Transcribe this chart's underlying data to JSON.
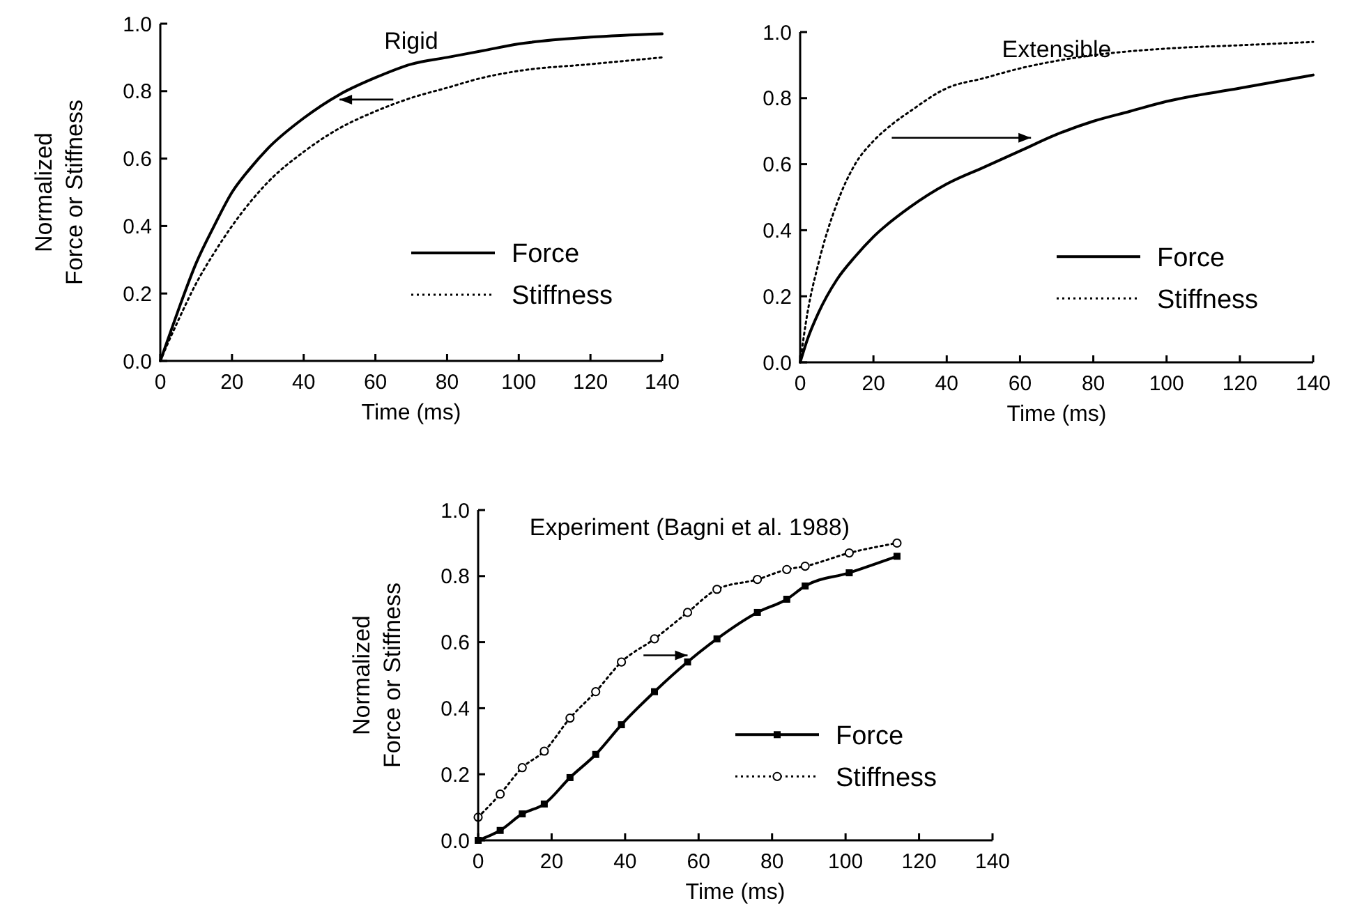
{
  "chart_data": [
    {
      "type": "line",
      "title": "Rigid",
      "xlabel": "Time (ms)",
      "ylabel": "Normalized\nForce or Stiffness",
      "xlim": [
        0,
        140
      ],
      "ylim": [
        0,
        1
      ],
      "xticks": [
        0,
        20,
        40,
        60,
        80,
        100,
        120,
        140
      ],
      "yticks": [
        {
          "value": 0,
          "label": "0.0"
        },
        {
          "value": 0.2,
          "label": "0.2"
        },
        {
          "value": 0.4,
          "label": "0.4"
        },
        {
          "value": 0.6,
          "label": "0.6"
        },
        {
          "value": 0.8,
          "label": "0.8"
        },
        {
          "value": 1,
          "label": "1.0"
        }
      ],
      "legend": "bottom right",
      "series": [
        {
          "name": "Force",
          "color": "#000000",
          "line_style": "solid",
          "x": [
            0,
            2,
            5,
            10,
            15,
            20,
            25,
            30,
            40,
            50,
            60,
            70,
            80,
            90,
            100,
            120,
            140
          ],
          "values": [
            0,
            0.06,
            0.15,
            0.29,
            0.4,
            0.5,
            0.57,
            0.63,
            0.72,
            0.79,
            0.84,
            0.88,
            0.9,
            0.92,
            0.94,
            0.96,
            0.97
          ]
        },
        {
          "name": "Stiffness",
          "color": "#000000",
          "line_style": "dotted",
          "x": [
            0,
            2,
            5,
            10,
            15,
            20,
            25,
            30,
            40,
            50,
            60,
            70,
            80,
            90,
            100,
            120,
            140
          ],
          "values": [
            0,
            0.05,
            0.12,
            0.23,
            0.32,
            0.4,
            0.47,
            0.53,
            0.62,
            0.69,
            0.74,
            0.78,
            0.81,
            0.84,
            0.86,
            0.88,
            0.9
          ]
        }
      ]
    },
    {
      "type": "line",
      "title": "Extensible",
      "xlabel": "Time (ms)",
      "xlim": [
        0,
        140
      ],
      "ylim": [
        0,
        1
      ],
      "xticks": [
        0,
        20,
        40,
        60,
        80,
        100,
        120,
        140
      ],
      "yticks": [
        {
          "value": 0,
          "label": "0.0"
        },
        {
          "value": 0.2,
          "label": "0.2"
        },
        {
          "value": 0.4,
          "label": "0.4"
        },
        {
          "value": 0.6,
          "label": "0.6"
        },
        {
          "value": 0.8,
          "label": "0.8"
        },
        {
          "value": 1,
          "label": "1.0"
        }
      ],
      "legend": "bottom right",
      "series": [
        {
          "name": "Force",
          "color": "#000000",
          "line_style": "solid",
          "x": [
            0,
            2,
            5,
            10,
            15,
            20,
            30,
            40,
            50,
            60,
            70,
            80,
            90,
            100,
            120,
            140
          ],
          "values": [
            0,
            0.07,
            0.15,
            0.25,
            0.32,
            0.38,
            0.47,
            0.54,
            0.59,
            0.64,
            0.69,
            0.73,
            0.76,
            0.79,
            0.83,
            0.87
          ]
        },
        {
          "name": "Stiffness",
          "color": "#000000",
          "line_style": "dotted",
          "x": [
            0,
            2,
            5,
            10,
            15,
            20,
            25,
            30,
            40,
            50,
            60,
            80,
            100,
            120,
            140
          ],
          "values": [
            0,
            0.15,
            0.3,
            0.48,
            0.6,
            0.67,
            0.72,
            0.76,
            0.83,
            0.86,
            0.89,
            0.93,
            0.95,
            0.96,
            0.97
          ]
        }
      ]
    },
    {
      "type": "line",
      "title": "Experiment  (Bagni et al. 1988)",
      "xlabel": "Time (ms)",
      "ylabel": "Normalized\nForce or Stiffness",
      "xlim": [
        0,
        140
      ],
      "ylim": [
        0,
        1
      ],
      "xticks": [
        0,
        20,
        40,
        60,
        80,
        100,
        120,
        140
      ],
      "yticks": [
        {
          "value": 0,
          "label": "0.0"
        },
        {
          "value": 0.2,
          "label": "0.2"
        },
        {
          "value": 0.4,
          "label": "0.4"
        },
        {
          "value": 0.6,
          "label": "0.6"
        },
        {
          "value": 0.8,
          "label": "0.8"
        },
        {
          "value": 1,
          "label": "1.0"
        }
      ],
      "legend": "bottom right",
      "series": [
        {
          "name": "Force",
          "color": "#000000",
          "line_style": "solid",
          "marker": "square",
          "x": [
            0,
            6,
            12,
            18,
            25,
            32,
            39,
            48,
            57,
            65,
            76,
            84,
            89,
            101,
            114
          ],
          "values": [
            0,
            0.03,
            0.08,
            0.11,
            0.19,
            0.26,
            0.35,
            0.45,
            0.54,
            0.61,
            0.69,
            0.73,
            0.77,
            0.81,
            0.86
          ]
        },
        {
          "name": "Stiffness",
          "color": "#000000",
          "line_style": "dotted",
          "marker": "circle",
          "x": [
            0,
            6,
            12,
            18,
            25,
            32,
            39,
            48,
            57,
            65,
            76,
            84,
            89,
            101,
            114
          ],
          "values": [
            0.07,
            0.14,
            0.22,
            0.27,
            0.37,
            0.45,
            0.54,
            0.61,
            0.69,
            0.76,
            0.79,
            0.82,
            0.83,
            0.87,
            0.9
          ]
        }
      ]
    }
  ]
}
